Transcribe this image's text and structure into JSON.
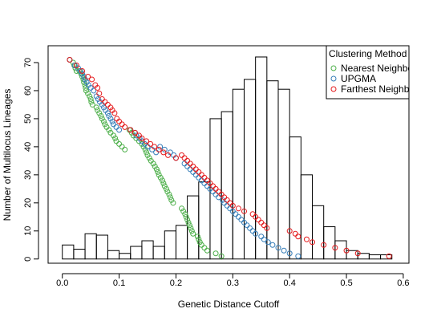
{
  "chart_data": {
    "type": "scatter",
    "xlabel": "Genetic Distance Cutoff",
    "ylabel": "Number of Multilocus Lineages",
    "xlim": [
      -0.025,
      0.61
    ],
    "ylim": [
      -1.5,
      76
    ],
    "x_ticks": [
      "0.0",
      "0.1",
      "0.2",
      "0.3",
      "0.4",
      "0.5",
      "0.6"
    ],
    "y_ticks": [
      "0",
      "10",
      "20",
      "30",
      "40",
      "50",
      "60",
      "70"
    ],
    "grid": false,
    "legend": {
      "title": "Clustering Method",
      "position": "top-right",
      "entries": [
        "Nearest Neighbor",
        "UPGMA",
        "Farthest Neighbor"
      ]
    },
    "histogram": {
      "bin_width": 0.02,
      "bin_starts": [
        0.0,
        0.02,
        0.04,
        0.06,
        0.08,
        0.1,
        0.12,
        0.14,
        0.16,
        0.18,
        0.2,
        0.22,
        0.24,
        0.26,
        0.28,
        0.3,
        0.32,
        0.34,
        0.36,
        0.38,
        0.4,
        0.42,
        0.44,
        0.46,
        0.48,
        0.5,
        0.52,
        0.54,
        0.56
      ],
      "heights": [
        5,
        3.5,
        9,
        8.5,
        3,
        2,
        4.5,
        6.5,
        4.5,
        10,
        12,
        22.5,
        27.5,
        50,
        52.5,
        60.5,
        64,
        72,
        63.5,
        60.5,
        43.5,
        30,
        19,
        11.5,
        6.5,
        3,
        2,
        1.5,
        1.5
      ],
      "color": "#000000"
    },
    "series": [
      {
        "name": "Nearest Neighbor",
        "color": "#4daf4a",
        "points": [
          [
            0.013,
            71
          ],
          [
            0.019,
            70
          ],
          [
            0.021,
            69
          ],
          [
            0.023,
            68
          ],
          [
            0.025,
            67
          ],
          [
            0.03,
            67
          ],
          [
            0.033,
            66
          ],
          [
            0.035,
            65
          ],
          [
            0.037,
            64
          ],
          [
            0.038,
            63
          ],
          [
            0.04,
            62
          ],
          [
            0.041,
            61
          ],
          [
            0.042,
            60
          ],
          [
            0.045,
            59
          ],
          [
            0.048,
            58
          ],
          [
            0.05,
            57
          ],
          [
            0.051,
            56
          ],
          [
            0.053,
            55
          ],
          [
            0.06,
            54
          ],
          [
            0.062,
            53
          ],
          [
            0.065,
            52
          ],
          [
            0.068,
            51
          ],
          [
            0.07,
            50
          ],
          [
            0.073,
            49
          ],
          [
            0.075,
            48
          ],
          [
            0.078,
            47
          ],
          [
            0.082,
            46
          ],
          [
            0.085,
            45
          ],
          [
            0.09,
            44
          ],
          [
            0.093,
            43
          ],
          [
            0.095,
            42
          ],
          [
            0.1,
            41
          ],
          [
            0.105,
            40
          ],
          [
            0.11,
            39
          ],
          [
            0.118,
            46
          ],
          [
            0.122,
            45
          ],
          [
            0.125,
            44
          ],
          [
            0.13,
            43
          ],
          [
            0.135,
            42
          ],
          [
            0.14,
            41
          ],
          [
            0.143,
            40
          ],
          [
            0.146,
            39
          ],
          [
            0.148,
            38
          ],
          [
            0.15,
            37
          ],
          [
            0.153,
            36
          ],
          [
            0.156,
            35
          ],
          [
            0.16,
            34
          ],
          [
            0.163,
            33
          ],
          [
            0.166,
            32
          ],
          [
            0.168,
            31
          ],
          [
            0.17,
            30
          ],
          [
            0.173,
            29
          ],
          [
            0.176,
            28
          ],
          [
            0.178,
            27
          ],
          [
            0.18,
            26
          ],
          [
            0.183,
            25
          ],
          [
            0.185,
            24
          ],
          [
            0.188,
            23
          ],
          [
            0.19,
            22
          ],
          [
            0.192,
            21
          ],
          [
            0.195,
            20
          ],
          [
            0.21,
            18
          ],
          [
            0.213,
            17
          ],
          [
            0.216,
            16
          ],
          [
            0.218,
            15
          ],
          [
            0.22,
            14
          ],
          [
            0.222,
            13
          ],
          [
            0.224,
            12
          ],
          [
            0.226,
            11
          ],
          [
            0.228,
            10
          ],
          [
            0.23,
            9
          ],
          [
            0.238,
            8
          ],
          [
            0.24,
            7
          ],
          [
            0.242,
            6
          ],
          [
            0.245,
            5
          ],
          [
            0.25,
            4
          ],
          [
            0.255,
            3
          ],
          [
            0.27,
            2
          ],
          [
            0.28,
            1
          ]
        ]
      },
      {
        "name": "UPGMA",
        "color": "#377eb8",
        "points": [
          [
            0.013,
            71
          ],
          [
            0.022,
            69
          ],
          [
            0.028,
            68
          ],
          [
            0.032,
            67
          ],
          [
            0.035,
            66
          ],
          [
            0.038,
            65
          ],
          [
            0.04,
            64
          ],
          [
            0.043,
            63
          ],
          [
            0.046,
            62
          ],
          [
            0.05,
            61
          ],
          [
            0.055,
            60
          ],
          [
            0.06,
            58
          ],
          [
            0.063,
            57
          ],
          [
            0.066,
            56
          ],
          [
            0.07,
            55
          ],
          [
            0.073,
            54
          ],
          [
            0.076,
            53
          ],
          [
            0.08,
            52
          ],
          [
            0.082,
            51
          ],
          [
            0.085,
            50
          ],
          [
            0.088,
            49
          ],
          [
            0.09,
            48
          ],
          [
            0.095,
            47
          ],
          [
            0.1,
            46
          ],
          [
            0.12,
            46
          ],
          [
            0.128,
            45
          ],
          [
            0.13,
            44
          ],
          [
            0.136,
            43
          ],
          [
            0.14,
            42
          ],
          [
            0.145,
            41
          ],
          [
            0.15,
            40
          ],
          [
            0.158,
            39
          ],
          [
            0.165,
            38
          ],
          [
            0.172,
            40
          ],
          [
            0.18,
            39
          ],
          [
            0.19,
            38
          ],
          [
            0.196,
            37
          ],
          [
            0.2,
            36
          ],
          [
            0.215,
            34
          ],
          [
            0.22,
            33
          ],
          [
            0.225,
            32
          ],
          [
            0.23,
            31
          ],
          [
            0.235,
            30
          ],
          [
            0.24,
            29
          ],
          [
            0.245,
            28
          ],
          [
            0.25,
            27
          ],
          [
            0.255,
            26
          ],
          [
            0.26,
            25
          ],
          [
            0.265,
            24
          ],
          [
            0.27,
            23
          ],
          [
            0.275,
            22
          ],
          [
            0.282,
            21
          ],
          [
            0.285,
            20
          ],
          [
            0.29,
            19
          ],
          [
            0.295,
            18
          ],
          [
            0.3,
            17
          ],
          [
            0.305,
            16
          ],
          [
            0.31,
            15
          ],
          [
            0.315,
            14
          ],
          [
            0.32,
            13
          ],
          [
            0.325,
            12
          ],
          [
            0.33,
            11
          ],
          [
            0.335,
            10
          ],
          [
            0.34,
            9
          ],
          [
            0.35,
            8
          ],
          [
            0.355,
            7
          ],
          [
            0.362,
            6
          ],
          [
            0.37,
            5
          ],
          [
            0.38,
            4
          ],
          [
            0.39,
            3
          ],
          [
            0.4,
            2
          ],
          [
            0.415,
            1
          ]
        ]
      },
      {
        "name": "Farthest Neighbor",
        "color": "#e41a1c",
        "points": [
          [
            0.013,
            71
          ],
          [
            0.025,
            69
          ],
          [
            0.035,
            67
          ],
          [
            0.045,
            65
          ],
          [
            0.052,
            64
          ],
          [
            0.058,
            62
          ],
          [
            0.062,
            61
          ],
          [
            0.065,
            59
          ],
          [
            0.07,
            57
          ],
          [
            0.075,
            56
          ],
          [
            0.08,
            55
          ],
          [
            0.085,
            54
          ],
          [
            0.088,
            53
          ],
          [
            0.092,
            52
          ],
          [
            0.096,
            50
          ],
          [
            0.1,
            49
          ],
          [
            0.105,
            48
          ],
          [
            0.11,
            47
          ],
          [
            0.12,
            46
          ],
          [
            0.128,
            45
          ],
          [
            0.135,
            44
          ],
          [
            0.14,
            43
          ],
          [
            0.148,
            42
          ],
          [
            0.155,
            41
          ],
          [
            0.162,
            40
          ],
          [
            0.17,
            39
          ],
          [
            0.178,
            38
          ],
          [
            0.186,
            37
          ],
          [
            0.2,
            36
          ],
          [
            0.21,
            37
          ],
          [
            0.215,
            36
          ],
          [
            0.22,
            35
          ],
          [
            0.225,
            34
          ],
          [
            0.23,
            33
          ],
          [
            0.235,
            32
          ],
          [
            0.24,
            31
          ],
          [
            0.245,
            30
          ],
          [
            0.25,
            29
          ],
          [
            0.255,
            28
          ],
          [
            0.26,
            27
          ],
          [
            0.265,
            26
          ],
          [
            0.27,
            25
          ],
          [
            0.275,
            24
          ],
          [
            0.28,
            23
          ],
          [
            0.285,
            22
          ],
          [
            0.29,
            21
          ],
          [
            0.295,
            20
          ],
          [
            0.3,
            19
          ],
          [
            0.31,
            18
          ],
          [
            0.32,
            17
          ],
          [
            0.335,
            16
          ],
          [
            0.34,
            15
          ],
          [
            0.345,
            14
          ],
          [
            0.35,
            13
          ],
          [
            0.355,
            12
          ],
          [
            0.36,
            11
          ],
          [
            0.4,
            10
          ],
          [
            0.41,
            9
          ],
          [
            0.415,
            8
          ],
          [
            0.43,
            7
          ],
          [
            0.44,
            6
          ],
          [
            0.46,
            5
          ],
          [
            0.48,
            4
          ],
          [
            0.5,
            3
          ],
          [
            0.52,
            2
          ],
          [
            0.575,
            1
          ]
        ]
      }
    ]
  }
}
